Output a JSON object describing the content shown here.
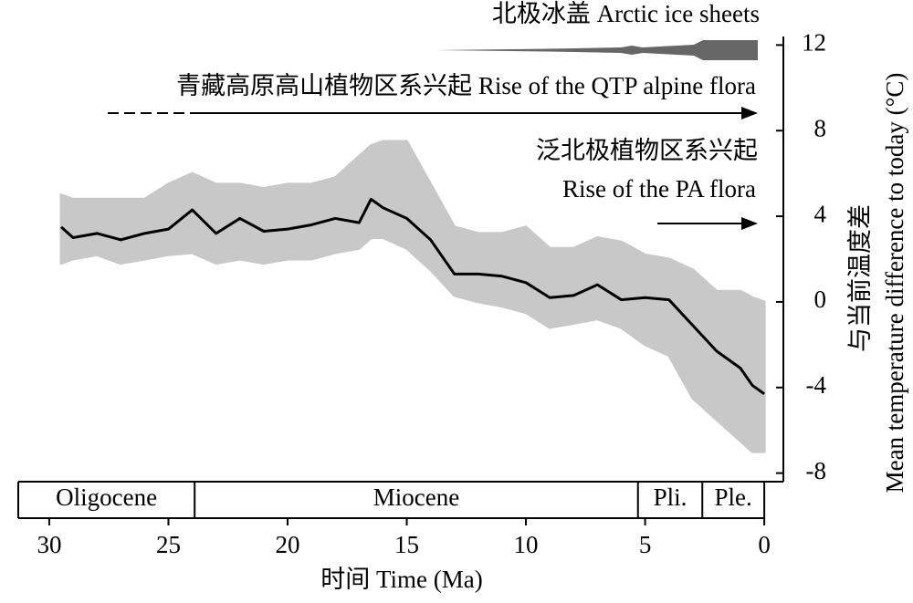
{
  "chart_data": {
    "type": "line",
    "annotations": {
      "ice": "北极冰盖 Arctic ice sheets",
      "qtp": "青藏高原高山植物区系兴起 Rise of the QTP alpine flora",
      "pa_zh": "泛北极植物区系兴起",
      "pa_en": "Rise of the PA flora"
    },
    "x_label": "时间 Time (Ma)",
    "y_label_zh": "与当前温度差",
    "y_label_en": "Mean temperature difference to today (°C)",
    "x": [
      29.5,
      29,
      28,
      27,
      26,
      25,
      24,
      23,
      22,
      21,
      20,
      19,
      18,
      17,
      16.5,
      16,
      15,
      14,
      13,
      12,
      11,
      10,
      9,
      8,
      7,
      6,
      5,
      4,
      3,
      2,
      1,
      0.5,
      0
    ],
    "series": [
      {
        "color": "#c8c8c8",
        "upper": [
          5.0,
          4.8,
          4.8,
          4.8,
          4.8,
          5.5,
          6.0,
          5.5,
          5.5,
          5.3,
          5.5,
          5.5,
          5.8,
          6.8,
          7.3,
          7.5,
          7.5,
          5.5,
          3.5,
          3.2,
          3.2,
          3.5,
          2.5,
          2.5,
          3.0,
          2.8,
          2.2,
          2.0,
          1.5,
          0.5,
          0.5,
          0.2,
          0.0
        ],
        "lower": [
          1.8,
          2.0,
          2.2,
          1.8,
          2.0,
          2.2,
          2.3,
          1.8,
          2.0,
          1.8,
          2.0,
          2.0,
          2.3,
          2.5,
          3.0,
          3.0,
          2.5,
          1.5,
          0.3,
          0.0,
          -0.2,
          -0.5,
          -1.2,
          -1.0,
          -0.8,
          -1.2,
          -2.0,
          -2.5,
          -4.5,
          -5.5,
          -6.5,
          -7.0,
          -7.0
        ]
      },
      {
        "color": "#000000",
        "values": [
          3.5,
          3.0,
          3.2,
          2.9,
          3.2,
          3.4,
          4.3,
          3.2,
          3.9,
          3.3,
          3.4,
          3.6,
          3.9,
          3.7,
          4.8,
          4.4,
          3.9,
          2.9,
          1.3,
          1.3,
          1.2,
          0.9,
          0.2,
          0.3,
          0.8,
          0.1,
          0.2,
          0.1,
          -1.1,
          -2.3,
          -3.1,
          -3.9,
          -4.3
        ]
      }
    ],
    "xlim": [
      31.3,
      -0.8
    ],
    "xticks": [
      30,
      25,
      20,
      15,
      10,
      5,
      0
    ],
    "ylim": [
      -8.4,
      12.4
    ],
    "yticks": [
      -8,
      -4,
      0,
      4,
      8,
      12
    ],
    "epochs": {
      "names": [
        "Oligocene",
        "Miocene",
        "Pli.",
        "Ple."
      ],
      "boundaries": [
        23.9,
        5.3,
        2.6
      ]
    }
  }
}
